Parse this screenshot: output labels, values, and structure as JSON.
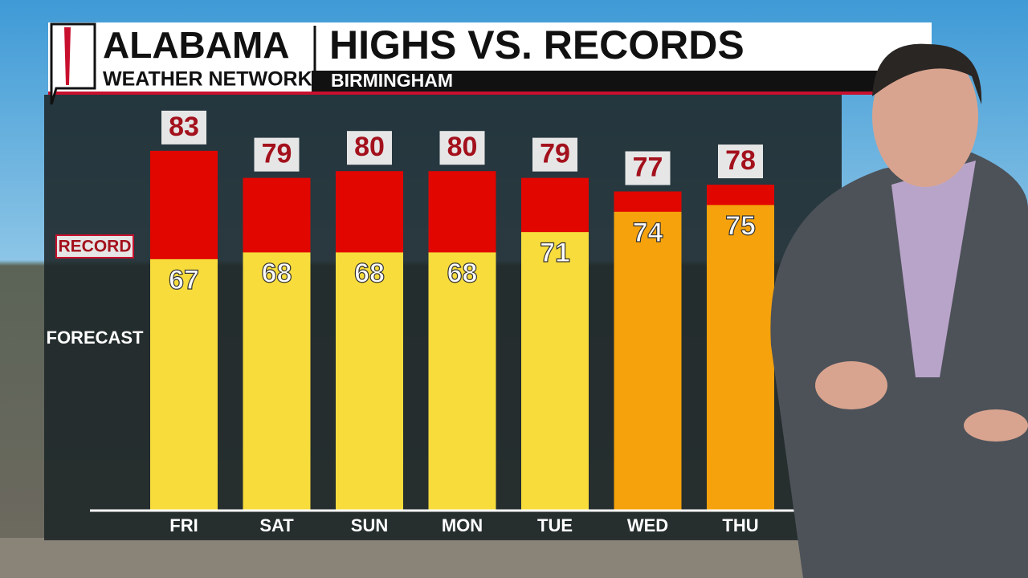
{
  "header": {
    "brand_line1": "ALABAMA",
    "brand_line2": "WEATHER NETWORK"
  },
  "chart_data": {
    "type": "overlap-bar",
    "title": "HIGHS VS. RECORDS",
    "subtitle": "BIRMINGHAM",
    "categories": [
      "FRI",
      "SAT",
      "SUN",
      "MON",
      "TUE",
      "WED",
      "THU"
    ],
    "series": [
      {
        "name": "RECORD",
        "color": "#e10600",
        "values": [
          83,
          79,
          80,
          80,
          79,
          77,
          78
        ]
      },
      {
        "name": "FORECAST",
        "colors": [
          "#f7dc3c",
          "#f7dc3c",
          "#f7dc3c",
          "#f7dc3c",
          "#f7dc3c",
          "#f5a20c",
          "#f5a20c"
        ],
        "values": [
          67,
          68,
          68,
          68,
          71,
          74,
          75
        ]
      }
    ],
    "ylim": [
      30,
      85
    ]
  }
}
